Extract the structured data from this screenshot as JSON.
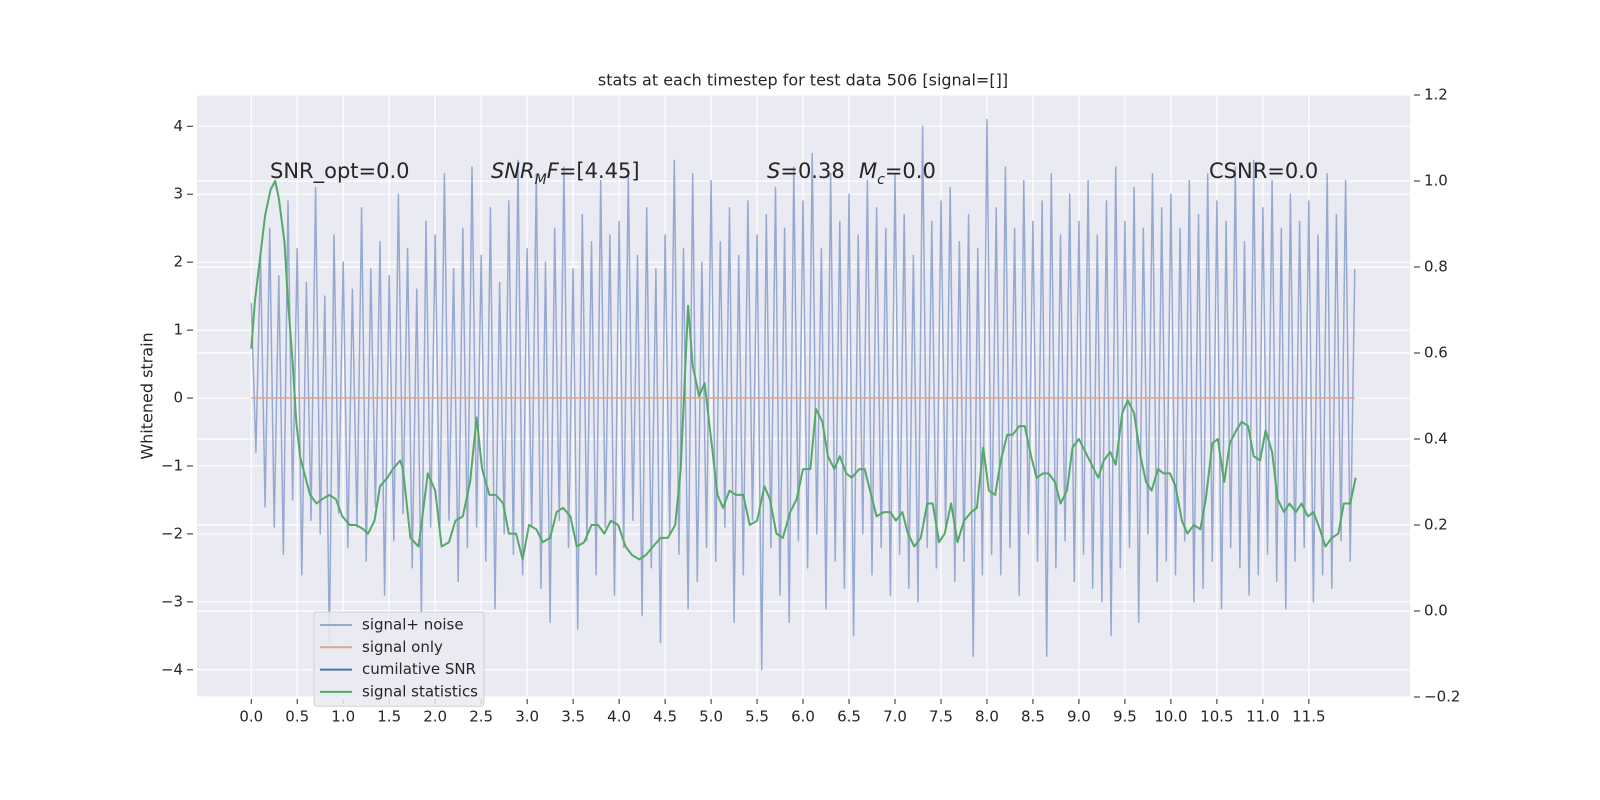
{
  "chart_data": {
    "type": "line",
    "title": "stats at each timestep for test data 506 [signal=[]]",
    "ylabel": "Whitened strain",
    "grid": true,
    "legend": "lower left",
    "xlim": [
      -0.59,
      12.6
    ],
    "ylim": [
      -4.4,
      4.46
    ],
    "y2lim": [
      -0.2,
      1.2
    ],
    "xticks": [
      {
        "value": 0,
        "label": "0.0"
      },
      0.5,
      {
        "value": 1,
        "label": "1.0"
      },
      1.5,
      {
        "value": 2,
        "label": "2.0"
      },
      2.5,
      {
        "value": 3,
        "label": "3.0"
      },
      3.5,
      {
        "value": 4,
        "label": "4.0"
      },
      4.5,
      {
        "value": 5,
        "label": "5.0"
      },
      5.5,
      {
        "value": 6,
        "label": "6.0"
      },
      6.5,
      {
        "value": 7,
        "label": "7.0"
      },
      7.5,
      {
        "value": 8,
        "label": "8.0"
      },
      8.5,
      {
        "value": 9,
        "label": "9.0"
      },
      9.5,
      {
        "value": 10,
        "label": "10.0"
      },
      10.5,
      {
        "value": 11,
        "label": "11.0"
      },
      11.5
    ],
    "yticks": [
      {
        "value": -4,
        "label": "−4"
      },
      {
        "value": -3,
        "label": "−3"
      },
      {
        "value": -2,
        "label": "−2"
      },
      {
        "value": -1,
        "label": "−1"
      },
      0,
      1,
      2,
      3,
      4
    ],
    "y2ticks": [
      {
        "value": -0.2,
        "label": "−0.2"
      },
      {
        "value": 0,
        "label": "0.0"
      },
      0.2,
      0.4,
      0.6,
      0.8,
      {
        "value": 1,
        "label": "1.0"
      },
      1.2
    ],
    "annotations": [
      [
        {
          "text": "SNR_opt=0.0",
          "style": "normal"
        }
      ],
      [
        {
          "text": "SNR",
          "style": "italic"
        },
        {
          "text": "M",
          "style": "sub"
        },
        {
          "text": "F",
          "style": "italic"
        },
        {
          "text": "=[4.45]",
          "style": "normal"
        }
      ],
      [
        {
          "text": "S",
          "style": "italic"
        },
        {
          "text": "=0.38",
          "style": "normal"
        }
      ],
      [
        {
          "text": "M",
          "style": "italic"
        },
        {
          "text": "c",
          "style": "sub"
        },
        {
          "text": "=0.0",
          "style": "normal"
        }
      ],
      [
        {
          "text": "CSNR=0.0",
          "style": "normal"
        }
      ]
    ],
    "series": [
      {
        "name": "signal+ noise",
        "color": "#97a9d1",
        "axis": "y",
        "x": [
          0,
          0.05,
          0.1,
          0.15,
          0.2,
          0.25,
          0.3,
          0.35,
          0.4,
          0.45,
          0.5,
          0.55,
          0.6,
          0.65,
          0.7,
          0.75,
          0.8,
          0.85,
          0.9,
          0.95,
          1,
          1.05,
          1.1,
          1.15,
          1.2,
          1.25,
          1.3,
          1.35,
          1.4,
          1.45,
          1.5,
          1.55,
          1.6,
          1.65,
          1.7,
          1.75,
          1.8,
          1.85,
          1.9,
          1.95,
          2,
          2.05,
          2.1,
          2.15,
          2.2,
          2.25,
          2.3,
          2.35,
          2.4,
          2.45,
          2.5,
          2.55,
          2.6,
          2.65,
          2.7,
          2.75,
          2.8,
          2.85,
          2.9,
          2.95,
          3,
          3.05,
          3.1,
          3.15,
          3.2,
          3.25,
          3.3,
          3.35,
          3.4,
          3.45,
          3.5,
          3.55,
          3.6,
          3.65,
          3.7,
          3.75,
          3.8,
          3.85,
          3.9,
          3.95,
          4,
          4.05,
          4.1,
          4.15,
          4.2,
          4.25,
          4.3,
          4.35,
          4.4,
          4.45,
          4.5,
          4.55,
          4.6,
          4.65,
          4.7,
          4.75,
          4.8,
          4.85,
          4.9,
          4.95,
          5,
          5.05,
          5.1,
          5.15,
          5.2,
          5.25,
          5.3,
          5.35,
          5.4,
          5.45,
          5.5,
          5.55,
          5.6,
          5.65,
          5.7,
          5.75,
          5.8,
          5.85,
          5.9,
          5.95,
          6,
          6.05,
          6.1,
          6.15,
          6.2,
          6.25,
          6.3,
          6.35,
          6.4,
          6.45,
          6.5,
          6.55,
          6.6,
          6.65,
          6.7,
          6.75,
          6.8,
          6.85,
          6.9,
          6.95,
          7,
          7.05,
          7.1,
          7.15,
          7.2,
          7.25,
          7.3,
          7.35,
          7.4,
          7.45,
          7.5,
          7.55,
          7.6,
          7.65,
          7.7,
          7.75,
          7.8,
          7.85,
          7.9,
          7.95,
          8,
          8.05,
          8.1,
          8.15,
          8.2,
          8.25,
          8.3,
          8.35,
          8.4,
          8.45,
          8.5,
          8.55,
          8.6,
          8.65,
          8.7,
          8.75,
          8.8,
          8.85,
          8.9,
          8.95,
          9,
          9.05,
          9.1,
          9.15,
          9.2,
          9.25,
          9.3,
          9.35,
          9.4,
          9.45,
          9.5,
          9.55,
          9.6,
          9.65,
          9.7,
          9.75,
          9.8,
          9.85,
          9.9,
          9.95,
          10,
          10.05,
          10.1,
          10.15,
          10.2,
          10.25,
          10.3,
          10.35,
          10.4,
          10.45,
          10.5,
          10.55,
          10.6,
          10.65,
          10.7,
          10.75,
          10.8,
          10.85,
          10.9,
          10.95,
          11,
          11.05,
          11.1,
          11.15,
          11.2,
          11.25,
          11.3,
          11.35,
          11.4,
          11.45,
          11.5,
          11.55,
          11.6,
          11.65,
          11.7,
          11.75,
          11.8,
          11.85,
          11.9,
          11.95,
          12
        ],
        "values": [
          1.4,
          -0.8,
          2.1,
          -1.6,
          2.5,
          -1.9,
          1.8,
          -2.3,
          2.9,
          -1.5,
          2.2,
          -2.6,
          1.7,
          -1.8,
          3.1,
          -2.0,
          1.5,
          -3.6,
          2.4,
          -1.7,
          2.0,
          -2.2,
          1.6,
          -1.9,
          2.8,
          -2.4,
          1.9,
          -1.6,
          2.3,
          -2.9,
          1.8,
          -2.1,
          3.0,
          -1.7,
          2.2,
          -2.5,
          1.6,
          -3.2,
          2.6,
          -1.9,
          2.4,
          -2.0,
          3.3,
          -1.8,
          1.9,
          -2.7,
          2.5,
          -2.2,
          3.4,
          -1.9,
          2.1,
          -2.4,
          2.8,
          -3.1,
          1.7,
          -2.0,
          2.9,
          -2.3,
          3.5,
          -2.6,
          2.2,
          -1.9,
          3.3,
          -2.8,
          2.0,
          -3.3,
          2.5,
          -1.8,
          3.4,
          -2.2,
          1.9,
          -3.4,
          2.7,
          -2.1,
          2.3,
          -2.6,
          3.2,
          -1.9,
          2.4,
          -2.9,
          2.6,
          -2.2,
          3.3,
          -1.8,
          2.1,
          -3.2,
          2.8,
          -2.5,
          1.9,
          -3.6,
          2.4,
          -2.0,
          3.5,
          -2.3,
          2.2,
          -3.1,
          3.3,
          -2.7,
          2.0,
          -2.2,
          3.2,
          -2.4,
          2.3,
          -1.9,
          2.8,
          -3.3,
          2.1,
          -2.6,
          2.9,
          -1.8,
          2.4,
          -4.0,
          2.7,
          -2.2,
          3.1,
          -2.9,
          2.5,
          -3.3,
          3.4,
          -2.1,
          2.9,
          -2.5,
          3.6,
          -2.0,
          2.2,
          -3.1,
          3.3,
          -2.4,
          2.6,
          -2.8,
          3.0,
          -3.5,
          2.4,
          -2.0,
          3.2,
          -2.6,
          2.8,
          -2.2,
          2.5,
          -2.9,
          3.3,
          -2.3,
          2.7,
          -2.8,
          2.1,
          -3.0,
          4.0,
          -2.2,
          2.6,
          -2.5,
          2.9,
          -1.9,
          3.1,
          -2.7,
          2.3,
          -2.4,
          2.7,
          -3.8,
          2.2,
          -2.6,
          4.1,
          -2.3,
          2.8,
          -2.6,
          3.4,
          -2.2,
          2.5,
          -2.9,
          3.2,
          -2.0,
          2.6,
          -2.4,
          2.9,
          -3.8,
          3.3,
          -2.5,
          2.4,
          -2.1,
          3.0,
          -2.7,
          2.6,
          -2.3,
          3.2,
          -2.8,
          2.4,
          -3.0,
          2.9,
          -3.5,
          3.4,
          -2.5,
          2.6,
          -2.2,
          3.1,
          -3.3,
          2.5,
          -2.0,
          3.3,
          -2.7,
          2.8,
          -2.4,
          3.0,
          -2.6,
          2.5,
          -2.1,
          3.2,
          -3.0,
          2.7,
          -2.8,
          3.3,
          -2.4,
          2.9,
          -3.1,
          2.6,
          -2.2,
          3.4,
          -2.5,
          2.3,
          -2.9,
          3.5,
          -2.6,
          2.8,
          -2.3,
          3.2,
          -2.7,
          2.5,
          -3.1,
          3.0,
          -2.4,
          2.6,
          -2.2,
          2.9,
          -3.0,
          2.4,
          -2.6,
          3.3,
          -2.8,
          2.7,
          -2.1,
          3.2,
          -2.4,
          1.9
        ]
      },
      {
        "name": "signal only",
        "color": "#e0a58a",
        "axis": "y",
        "x": [
          0,
          12
        ],
        "values": [
          0,
          0
        ]
      },
      {
        "name": "cumilative SNR",
        "color": "#4c72b0",
        "axis": "y",
        "x": [],
        "values": []
      },
      {
        "name": "signal statistics",
        "color": "#55a868",
        "axis": "y2",
        "x": [
          0,
          0.04,
          0.1,
          0.15,
          0.21,
          0.26,
          0.3,
          0.36,
          0.4,
          0.45,
          0.49,
          0.53,
          0.59,
          0.64,
          0.71,
          0.77,
          0.85,
          0.92,
          0.99,
          1.07,
          1.14,
          1.22,
          1.27,
          1.34,
          1.4,
          1.48,
          1.54,
          1.62,
          1.65,
          1.73,
          1.82,
          1.92,
          2.0,
          2.07,
          2.15,
          2.22,
          2.3,
          2.38,
          2.45,
          2.51,
          2.59,
          2.66,
          2.74,
          2.8,
          2.88,
          2.95,
          3.02,
          3.1,
          3.17,
          3.25,
          3.32,
          3.39,
          3.47,
          3.54,
          3.62,
          3.7,
          3.77,
          3.84,
          3.91,
          3.99,
          4.07,
          4.14,
          4.22,
          4.29,
          4.37,
          4.45,
          4.53,
          4.61,
          4.67,
          4.75,
          4.8,
          4.87,
          4.93,
          5.0,
          5.07,
          5.13,
          5.2,
          5.27,
          5.35,
          5.42,
          5.5,
          5.58,
          5.64,
          5.71,
          5.78,
          5.86,
          5.93,
          6.0,
          6.08,
          6.14,
          6.21,
          6.27,
          6.34,
          6.4,
          6.47,
          6.53,
          6.61,
          6.67,
          6.74,
          6.8,
          6.88,
          6.95,
          7.01,
          7.08,
          7.14,
          7.21,
          7.28,
          7.35,
          7.41,
          7.48,
          7.54,
          7.61,
          7.68,
          7.75,
          7.83,
          7.89,
          7.96,
          8.02,
          8.09,
          8.15,
          8.22,
          8.28,
          8.35,
          8.41,
          8.48,
          8.54,
          8.61,
          8.67,
          8.74,
          8.8,
          8.87,
          8.93,
          9.0,
          9.07,
          9.14,
          9.21,
          9.27,
          9.34,
          9.4,
          9.47,
          9.53,
          9.6,
          9.67,
          9.73,
          9.79,
          9.86,
          9.92,
          9.99,
          10.05,
          10.12,
          10.18,
          10.25,
          10.32,
          10.38,
          10.45,
          10.51,
          10.58,
          10.64,
          10.71,
          10.77,
          10.84,
          10.9,
          10.97,
          11.03,
          11.1,
          11.16,
          11.23,
          11.29,
          11.36,
          11.42,
          11.49,
          11.55,
          11.62,
          11.68,
          11.75,
          11.82,
          11.88,
          11.95,
          12.01
        ],
        "values": [
          0.61,
          0.72,
          0.83,
          0.92,
          0.98,
          1.0,
          0.96,
          0.86,
          0.72,
          0.58,
          0.44,
          0.36,
          0.31,
          0.27,
          0.25,
          0.26,
          0.27,
          0.26,
          0.22,
          0.2,
          0.2,
          0.19,
          0.18,
          0.21,
          0.29,
          0.31,
          0.33,
          0.35,
          0.33,
          0.17,
          0.15,
          0.32,
          0.28,
          0.15,
          0.16,
          0.21,
          0.22,
          0.3,
          0.45,
          0.33,
          0.27,
          0.27,
          0.25,
          0.18,
          0.18,
          0.12,
          0.2,
          0.19,
          0.16,
          0.17,
          0.23,
          0.24,
          0.22,
          0.15,
          0.16,
          0.2,
          0.2,
          0.18,
          0.21,
          0.2,
          0.15,
          0.13,
          0.12,
          0.13,
          0.15,
          0.17,
          0.17,
          0.2,
          0.33,
          0.71,
          0.57,
          0.5,
          0.53,
          0.4,
          0.27,
          0.24,
          0.28,
          0.27,
          0.27,
          0.2,
          0.21,
          0.29,
          0.26,
          0.18,
          0.17,
          0.23,
          0.26,
          0.33,
          0.33,
          0.47,
          0.44,
          0.36,
          0.33,
          0.36,
          0.32,
          0.31,
          0.33,
          0.33,
          0.27,
          0.22,
          0.23,
          0.23,
          0.21,
          0.23,
          0.18,
          0.15,
          0.17,
          0.25,
          0.25,
          0.16,
          0.18,
          0.25,
          0.16,
          0.21,
          0.23,
          0.24,
          0.38,
          0.28,
          0.27,
          0.35,
          0.41,
          0.41,
          0.43,
          0.43,
          0.36,
          0.31,
          0.32,
          0.32,
          0.3,
          0.25,
          0.28,
          0.38,
          0.4,
          0.37,
          0.34,
          0.31,
          0.35,
          0.37,
          0.34,
          0.46,
          0.49,
          0.46,
          0.36,
          0.3,
          0.28,
          0.33,
          0.32,
          0.32,
          0.29,
          0.21,
          0.18,
          0.2,
          0.19,
          0.26,
          0.39,
          0.4,
          0.3,
          0.39,
          0.42,
          0.44,
          0.43,
          0.36,
          0.35,
          0.42,
          0.37,
          0.26,
          0.23,
          0.25,
          0.23,
          0.25,
          0.22,
          0.23,
          0.19,
          0.15,
          0.17,
          0.18,
          0.25,
          0.25,
          0.31
        ]
      }
    ]
  }
}
